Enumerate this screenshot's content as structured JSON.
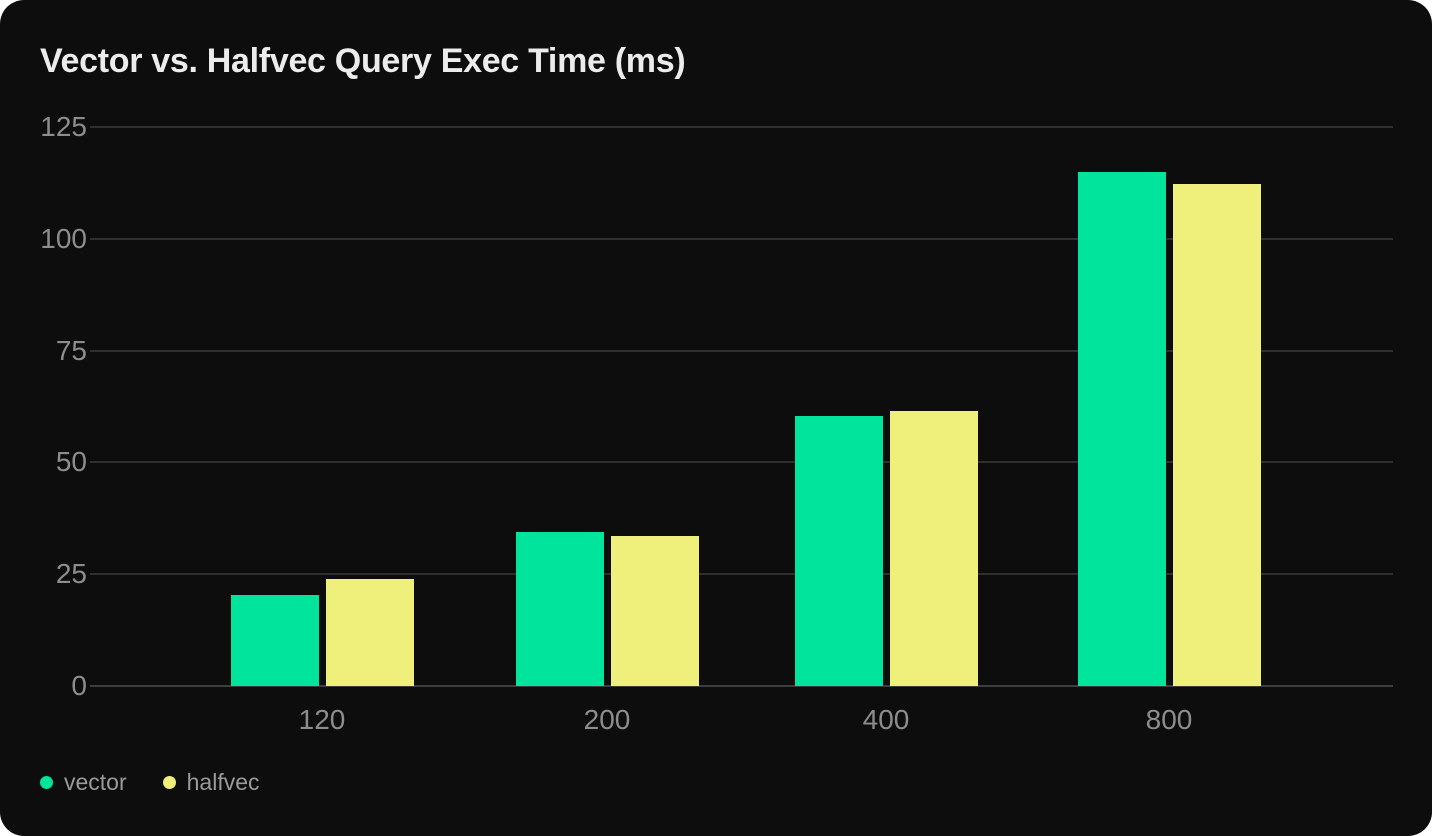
{
  "chart_data": {
    "type": "bar",
    "title": "Vector vs. Halfvec Query Exec Time (ms)",
    "categories": [
      "120",
      "200",
      "400",
      "800"
    ],
    "series": [
      {
        "name": "vector",
        "color": "#00e49b",
        "values": [
          20.4,
          34.5,
          60.4,
          114.9
        ]
      },
      {
        "name": "halfvec",
        "color": "#eef07b",
        "values": [
          23.9,
          33.6,
          61.5,
          112.3
        ]
      }
    ],
    "xlabel": "",
    "ylabel": "",
    "ylim": [
      0,
      125
    ],
    "yticks": [
      "0",
      "25",
      "50",
      "75",
      "100",
      "125"
    ],
    "grid": true,
    "legend_position": "bottom-left"
  },
  "colors": {
    "card_background": "#0d0d0d",
    "page_background": "#ffffff",
    "title_text": "#ececec",
    "axis_label_text": "#8d8d8d",
    "legend_text": "#9a9a9a",
    "grid_line": "#2f2f2f"
  }
}
